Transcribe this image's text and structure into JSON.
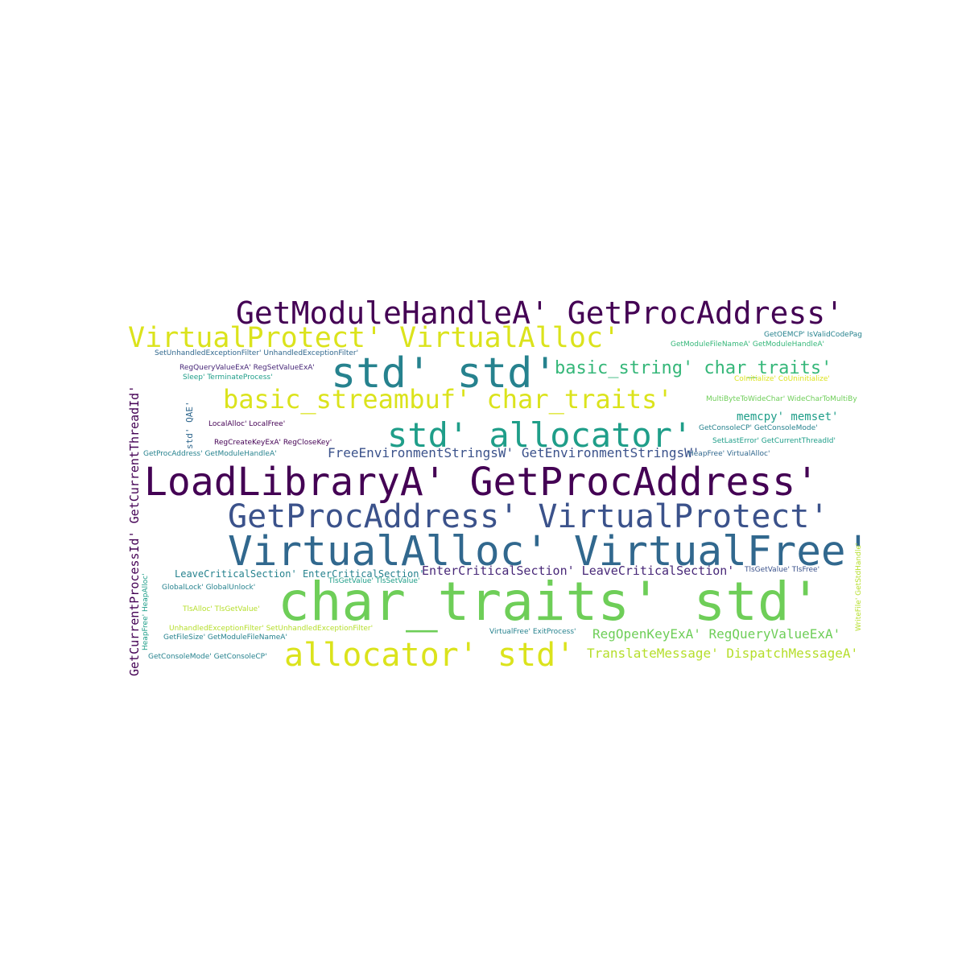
{
  "colors": {
    "background": "#ffffff",
    "deep_purple": "#440154",
    "purple": "#482878",
    "indigo": "#3b528b",
    "blue": "#31688e",
    "teal": "#26828e",
    "green_teal": "#1f9e89",
    "green": "#35b779",
    "light_green": "#6ece58",
    "lime": "#b5de2b",
    "yellow": "#dbe31c"
  },
  "words": [
    {
      "text": "GetModuleHandleA' GetProcAddress'",
      "color": "#440154"
    },
    {
      "text": "VirtualProtect' VirtualAlloc'",
      "color": "#dbe31c"
    },
    {
      "text": "GetOEMCP' IsValidCodePag",
      "color": "#26828e"
    },
    {
      "text": "GetModuleFileNameA' GetModuleHandleA'",
      "color": "#35b779"
    },
    {
      "text": "SetUnhandledExceptionFilter' UnhandledExceptionFilter'",
      "color": "#31688e"
    },
    {
      "text": "std' std'",
      "color": "#26828e"
    },
    {
      "text": "basic_string' char_traits'",
      "color": "#35b779"
    },
    {
      "text": "RegQueryValueExA' RegSetValueExA'",
      "color": "#482878"
    },
    {
      "text": "Sleep' TerminateProcess'",
      "color": "#1f9e89"
    },
    {
      "text": "CoInitialize' CoUninitialize'",
      "color": "#dbe31c"
    },
    {
      "text": "basic_streambuf' char_traits'",
      "color": "#dbe31c"
    },
    {
      "text": "MultiByteToWideChar' WideCharToMultiBy",
      "color": "#6ece58"
    },
    {
      "text": "memcpy' memset'",
      "color": "#1f9e89"
    },
    {
      "text": "std' allocator'",
      "color": "#1f9e89"
    },
    {
      "text": "LocalAlloc' LocalFree'",
      "color": "#440154"
    },
    {
      "text": "GetConsoleCP' GetConsoleMode'",
      "color": "#26828e"
    },
    {
      "text": "RegCreateKeyExA' RegCloseKey'",
      "color": "#440154"
    },
    {
      "text": "SetLastError' GetCurrentThreadId'",
      "color": "#1f9e89"
    },
    {
      "text": "FreeEnvironmentStringsW' GetEnvironmentStringsW'",
      "color": "#3b528b"
    },
    {
      "text": "GetProcAddress' GetModuleHandleA'",
      "color": "#26828e"
    },
    {
      "text": "HeapFree' VirtualAlloc'",
      "color": "#31688e"
    },
    {
      "text": "LoadLibraryA' GetProcAddress'",
      "color": "#440154"
    },
    {
      "text": "GetProcAddress' VirtualProtect'",
      "color": "#3b528b"
    },
    {
      "text": "VirtualAlloc' VirtualFree'",
      "color": "#31688e"
    },
    {
      "text": "LeaveCriticalSection' EnterCriticalSection'",
      "color": "#26828e"
    },
    {
      "text": "EnterCriticalSection' LeaveCriticalSection'",
      "color": "#482878"
    },
    {
      "text": "TlsGetValue' TlsFree'",
      "color": "#3b528b"
    },
    {
      "text": "TlsGetValue' TlsSetValue'",
      "color": "#1f9e89"
    },
    {
      "text": "GlobalLock' GlobalUnlock'",
      "color": "#26828e"
    },
    {
      "text": "char_traits' std'",
      "color": "#6ece58"
    },
    {
      "text": "TlsAlloc' TlsGetValue'",
      "color": "#b5de2b"
    },
    {
      "text": "UnhandledExceptionFilter' SetUnhandledExceptionFilter'",
      "color": "#b5de2b"
    },
    {
      "text": "VirtualFree' ExitProcess'",
      "color": "#26828e"
    },
    {
      "text": "RegOpenKeyExA' RegQueryValueExA'",
      "color": "#6ece58"
    },
    {
      "text": "GetFileSize' GetModuleFileNameA'",
      "color": "#26828e"
    },
    {
      "text": "allocator' std'",
      "color": "#dbe31c"
    },
    {
      "text": "TranslateMessage' DispatchMessageA'",
      "color": "#b5de2b"
    },
    {
      "text": "GetConsoleMode' GetConsoleCP'",
      "color": "#26828e"
    },
    {
      "text": "GetCurrentProcessId' GetCurrentThreadId'",
      "color": "#440154"
    },
    {
      "text": "std' QAE'",
      "color": "#31688e"
    },
    {
      "text": "HeapFree' HeapAlloc'",
      "color": "#1f9e89"
    },
    {
      "text": "WriteFile' GetStdHandle'",
      "color": "#b5de2b"
    }
  ]
}
